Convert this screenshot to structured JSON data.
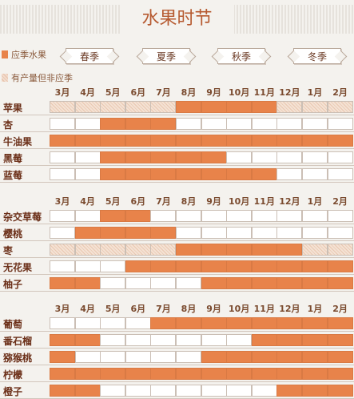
{
  "title": "水果时节",
  "legend": {
    "in_season": "应季水果",
    "out_season": "有产量但非应季"
  },
  "seasons": [
    "春季",
    "夏季",
    "秋季",
    "冬季"
  ],
  "months": [
    "3月",
    "4月",
    "5月",
    "6月",
    "7月",
    "8月",
    "9月",
    "10月",
    "11月",
    "12月",
    "1月",
    "2月"
  ],
  "groups": [
    {
      "fruits": [
        {
          "name": "苹果",
          "cells": [
            "m",
            "m",
            "m",
            "m",
            "m",
            "M",
            "M",
            "M",
            "M",
            "m",
            "m",
            "m"
          ]
        },
        {
          "name": "杏",
          "cells": [
            "",
            "",
            "M",
            "M",
            "M",
            "",
            "",
            "",
            "",
            "",
            "",
            ""
          ]
        },
        {
          "name": "牛油果",
          "cells": [
            "M",
            "M",
            "M",
            "M",
            "M",
            "M",
            "M",
            "M",
            "M",
            "M",
            "M",
            "M"
          ]
        },
        {
          "name": "黑莓",
          "cells": [
            "",
            "",
            "M",
            "M",
            "M",
            "M",
            "M",
            "",
            "",
            "",
            "",
            ""
          ]
        },
        {
          "name": "蓝莓",
          "cells": [
            "",
            "",
            "M",
            "M",
            "M",
            "M",
            "M",
            "M",
            "M",
            "",
            "",
            ""
          ]
        }
      ]
    },
    {
      "fruits": [
        {
          "name": "杂交草莓",
          "cells": [
            "",
            "",
            "M",
            "M",
            "",
            "",
            "",
            "",
            "",
            "",
            "",
            ""
          ]
        },
        {
          "name": "樱桃",
          "cells": [
            "",
            "M",
            "M",
            "M",
            "M",
            "",
            "",
            "",
            "",
            "",
            "",
            ""
          ]
        },
        {
          "name": "枣",
          "cells": [
            "m",
            "m",
            "m",
            "m",
            "m",
            "M",
            "M",
            "M",
            "M",
            "M",
            "m",
            "m"
          ]
        },
        {
          "name": "无花果",
          "cells": [
            "",
            "",
            "",
            "M",
            "M",
            "M",
            "M",
            "M",
            "M",
            "M",
            "M",
            "M"
          ]
        },
        {
          "name": "柚子",
          "cells": [
            "M",
            "M",
            "",
            "",
            "",
            "",
            "M",
            "M",
            "M",
            "M",
            "M",
            "M"
          ]
        }
      ]
    },
    {
      "fruits": [
        {
          "name": "葡萄",
          "cells": [
            "",
            "",
            "",
            "",
            "M",
            "M",
            "M",
            "M",
            "M",
            "M",
            "M",
            "M"
          ]
        },
        {
          "name": "番石榴",
          "cells": [
            "M",
            "M",
            "",
            "",
            "",
            "",
            "",
            "",
            "M",
            "M",
            "M",
            "M"
          ]
        },
        {
          "name": "猕猴桃",
          "cells": [
            "M",
            "",
            "",
            "",
            "",
            "",
            "M",
            "M",
            "M",
            "M",
            "M",
            "M"
          ]
        },
        {
          "name": "柠檬",
          "cells": [
            "M",
            "M",
            "M",
            "M",
            "M",
            "M",
            "M",
            "M",
            "M",
            "M",
            "M",
            "M"
          ]
        },
        {
          "name": "橙子",
          "cells": [
            "M",
            "M",
            "",
            "",
            "",
            "",
            "",
            "",
            "",
            "M",
            "M",
            "M"
          ]
        }
      ]
    }
  ],
  "colors": {
    "in_season": "#e8834a",
    "out_season": "#ecccb6",
    "title": "#b65a30"
  }
}
